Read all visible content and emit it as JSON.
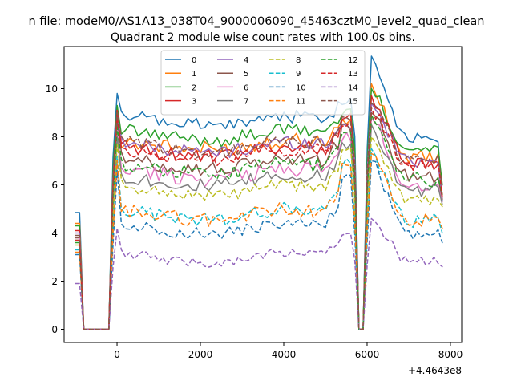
{
  "figure": {
    "suptitle": "n file: modeM0/AS1A13_038T04_9000006090_45463cztM0_level2_quad_clean",
    "title": "Quadrant 2 module wise count rates with 100.0s bins.",
    "offset_text": "+4.4643e8"
  },
  "chart_data": {
    "type": "line",
    "title": "Quadrant 2 module wise count rates with 100.0s bins.",
    "xlabel": "",
    "ylabel": "",
    "x_offset": 446430000,
    "xlim": [
      -1270,
      8270
    ],
    "ylim": [
      -0.55,
      11.75
    ],
    "xticks": [
      0,
      2000,
      4000,
      6000,
      8000
    ],
    "yticks": [
      0,
      2,
      4,
      6,
      8,
      10
    ],
    "grid": false,
    "legend": {
      "placement": "upper center",
      "columns": 4
    },
    "segments": [
      {
        "x_start": -1000,
        "x_end": 4,
        "points": 11,
        "shape": "gap_start"
      },
      {
        "x_start": 4,
        "x_end": 5604,
        "points": 57,
        "shape": "plateau"
      },
      {
        "x_start": 5604,
        "x_end": 7800,
        "points": 23,
        "shape": "gap_then_decay"
      }
    ],
    "series": [
      {
        "name": "0",
        "color": "#1f77b4",
        "style": "solid",
        "start": 4.85,
        "level": 8.9,
        "edge": 9.8,
        "peak": 11.35,
        "end": 5.3,
        "noise": 0.3
      },
      {
        "name": "1",
        "color": "#ff7f0e",
        "style": "solid",
        "start": 4.4,
        "level": 7.9,
        "edge": 9.0,
        "peak": 10.2,
        "end": 5.5,
        "noise": 0.35
      },
      {
        "name": "2",
        "color": "#2ca02c",
        "style": "solid",
        "start": 4.3,
        "level": 8.3,
        "edge": 9.3,
        "peak": 10.0,
        "end": 6.0,
        "noise": 0.3
      },
      {
        "name": "3",
        "color": "#d62728",
        "style": "solid",
        "start": 4.1,
        "level": 7.6,
        "edge": 9.1,
        "peak": 9.7,
        "end": 5.6,
        "noise": 0.3
      },
      {
        "name": "4",
        "color": "#9467bd",
        "style": "solid",
        "start": 4.0,
        "level": 7.8,
        "edge": 8.8,
        "peak": 9.4,
        "end": 5.4,
        "noise": 0.3
      },
      {
        "name": "5",
        "color": "#8c564b",
        "style": "solid",
        "start": 3.9,
        "level": 7.1,
        "edge": 8.7,
        "peak": 9.0,
        "end": 5.4,
        "noise": 0.3
      },
      {
        "name": "6",
        "color": "#e377c2",
        "style": "solid",
        "start": 3.8,
        "level": 6.7,
        "edge": 8.3,
        "peak": 8.8,
        "end": 5.3,
        "noise": 0.35
      },
      {
        "name": "7",
        "color": "#7f7f7f",
        "style": "solid",
        "start": 3.7,
        "level": 6.4,
        "edge": 8.0,
        "peak": 8.5,
        "end": 5.2,
        "noise": 0.3
      },
      {
        "name": "8",
        "color": "#bcbd22",
        "style": "dashed",
        "start": 3.5,
        "level": 6.0,
        "edge": 7.7,
        "peak": 8.0,
        "end": 5.1,
        "noise": 0.25
      },
      {
        "name": "9",
        "color": "#17becf",
        "style": "dashed",
        "start": 3.3,
        "level": 5.0,
        "edge": 7.2,
        "peak": 7.5,
        "end": 4.0,
        "noise": 0.3
      },
      {
        "name": "10",
        "color": "#1f77b4",
        "style": "dashed",
        "start": 3.1,
        "level": 4.4,
        "edge": 6.6,
        "peak": 7.0,
        "end": 3.6,
        "noise": 0.25
      },
      {
        "name": "11",
        "color": "#ff7f0e",
        "style": "dashed",
        "start": 3.2,
        "level": 5.0,
        "edge": 7.0,
        "peak": 7.3,
        "end": 4.2,
        "noise": 0.3
      },
      {
        "name": "12",
        "color": "#2ca02c",
        "style": "dashed",
        "start": 3.6,
        "level": 6.9,
        "edge": 8.4,
        "peak": 8.9,
        "end": 5.6,
        "noise": 0.3
      },
      {
        "name": "13",
        "color": "#d62728",
        "style": "dashed",
        "start": 3.7,
        "level": 7.5,
        "edge": 8.9,
        "peak": 9.2,
        "end": 5.5,
        "noise": 0.3
      },
      {
        "name": "14",
        "color": "#9467bd",
        "style": "dashed",
        "start": 1.9,
        "level": 3.2,
        "edge": 4.2,
        "peak": 4.6,
        "end": 2.6,
        "noise": 0.2
      },
      {
        "name": "15",
        "color": "#8c564b",
        "style": "dashed",
        "start": 3.8,
        "level": 7.8,
        "edge": 9.0,
        "peak": 9.4,
        "end": 5.9,
        "noise": 0.3
      }
    ]
  }
}
